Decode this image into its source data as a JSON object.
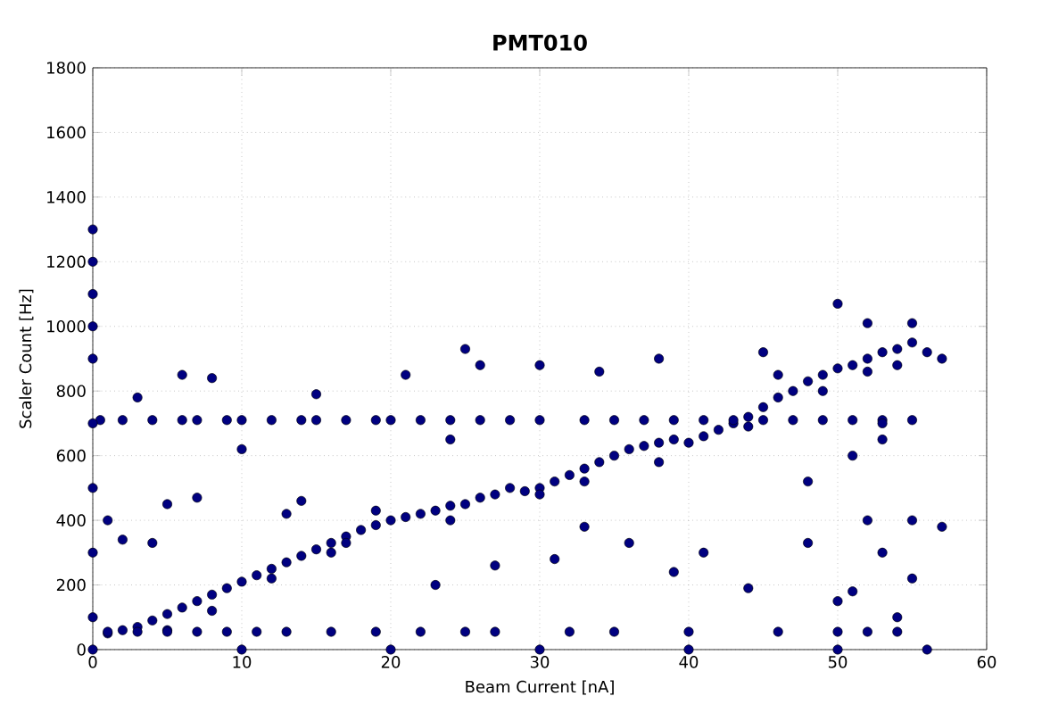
{
  "chart_data": {
    "type": "scatter",
    "title": "PMT010",
    "xlabel": "Beam Current [nA]",
    "ylabel": "Scaler Count [Hz]",
    "xlim": [
      0,
      60
    ],
    "ylim": [
      0,
      1800
    ],
    "xticks": [
      0,
      10,
      20,
      30,
      40,
      50,
      60
    ],
    "yticks": [
      0,
      200,
      400,
      600,
      800,
      1000,
      1200,
      1400,
      1600,
      1800
    ],
    "grid": true,
    "marker": "circle",
    "series": [
      {
        "color": "#000080",
        "x": [
          1,
          2,
          3,
          4,
          5,
          6,
          7,
          8,
          9,
          10,
          11,
          12,
          13,
          14,
          15,
          16,
          17,
          18,
          19,
          20,
          21,
          22,
          23,
          24,
          25,
          26,
          27,
          28,
          29,
          30,
          31,
          32,
          33,
          34,
          35,
          36,
          37,
          38,
          39,
          40,
          41,
          42,
          43,
          44,
          45,
          46,
          47,
          48,
          49,
          50,
          51,
          52,
          53,
          54,
          55,
          5,
          8,
          12,
          16,
          24,
          33,
          38,
          44,
          49,
          52,
          54,
          0.5,
          2,
          4,
          6,
          7,
          9,
          10,
          12,
          14,
          15,
          17,
          19,
          20,
          22,
          24,
          26,
          28,
          30,
          33,
          35,
          37,
          39,
          41,
          43,
          45,
          47,
          49,
          51,
          53,
          55,
          1,
          3,
          5,
          7,
          9,
          11,
          13,
          16,
          19,
          22,
          25,
          27,
          32,
          35,
          40,
          46,
          50,
          52,
          54,
          0,
          10,
          20,
          30,
          40,
          50,
          56,
          0,
          0,
          0,
          0,
          0,
          0,
          0,
          0,
          0,
          6,
          8,
          3,
          15,
          25,
          26,
          21,
          24,
          10,
          5,
          7,
          14,
          13,
          1,
          2,
          4,
          17,
          19,
          23,
          27,
          30,
          31,
          33,
          36,
          39,
          41,
          44,
          48,
          48,
          30,
          34,
          38,
          45,
          46,
          50,
          52,
          55,
          57,
          56,
          53,
          51,
          52,
          53,
          55,
          51,
          54,
          50,
          53,
          55,
          57
        ],
        "values": [
          50,
          60,
          70,
          90,
          110,
          130,
          150,
          170,
          190,
          210,
          230,
          250,
          270,
          290,
          310,
          330,
          350,
          370,
          385,
          400,
          410,
          420,
          430,
          445,
          450,
          470,
          480,
          500,
          490,
          500,
          520,
          540,
          560,
          580,
          600,
          620,
          630,
          640,
          650,
          640,
          660,
          680,
          700,
          720,
          750,
          780,
          800,
          830,
          850,
          870,
          880,
          900,
          920,
          930,
          950,
          60,
          120,
          220,
          300,
          400,
          520,
          580,
          690,
          800,
          860,
          880,
          710,
          710,
          710,
          710,
          710,
          710,
          710,
          710,
          710,
          710,
          710,
          710,
          710,
          710,
          710,
          710,
          710,
          710,
          710,
          710,
          710,
          710,
          710,
          710,
          710,
          710,
          710,
          710,
          710,
          710,
          55,
          55,
          55,
          55,
          55,
          55,
          55,
          55,
          55,
          55,
          55,
          55,
          55,
          55,
          55,
          55,
          55,
          55,
          55,
          0,
          0,
          0,
          0,
          0,
          0,
          0,
          100,
          300,
          500,
          700,
          900,
          1000,
          1100,
          1200,
          1300,
          850,
          840,
          780,
          790,
          930,
          880,
          850,
          650,
          620,
          450,
          470,
          460,
          420,
          400,
          340,
          330,
          330,
          430,
          200,
          260,
          480,
          280,
          380,
          330,
          240,
          300,
          190,
          520,
          330,
          880,
          860,
          900,
          920,
          850,
          1070,
          1010,
          1010,
          900,
          920,
          700,
          600,
          400,
          300,
          220,
          180,
          100,
          150,
          650,
          400,
          380
        ]
      }
    ]
  }
}
